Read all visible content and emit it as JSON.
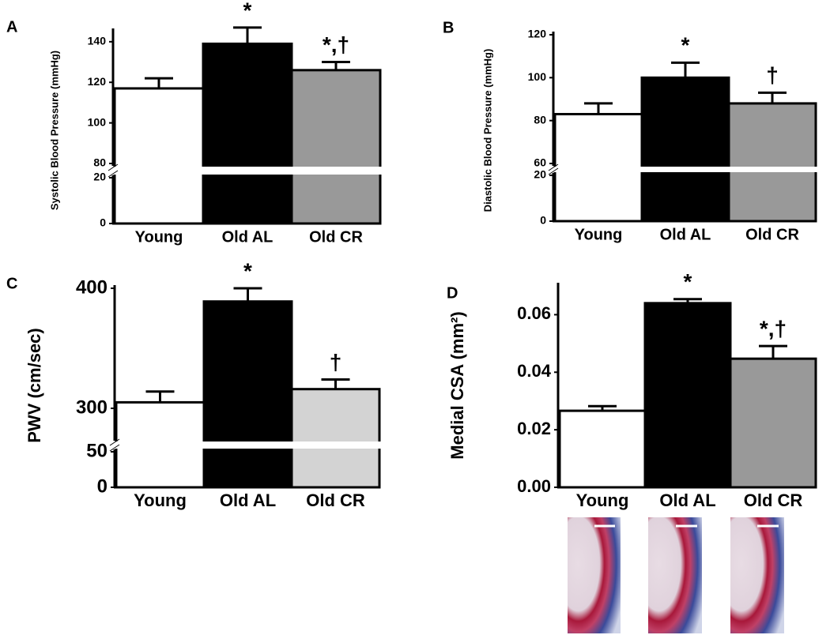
{
  "chart_data": [
    {
      "type": "bar",
      "panel_label": "A",
      "ylabel": "Systolic Blood Pressure (mmHg)",
      "categories": [
        "Young",
        "Old AL",
        "Old CR"
      ],
      "values": [
        117,
        139,
        126
      ],
      "errors": [
        5,
        8,
        4
      ],
      "colors": [
        "#ffffff",
        "#000000",
        "#999999"
      ],
      "annotations": [
        null,
        "*",
        "*,†"
      ],
      "ylim": [
        0,
        145
      ],
      "ybreak": [
        20,
        80
      ],
      "yticks": [
        0,
        20,
        80,
        100,
        120,
        140
      ]
    },
    {
      "type": "bar",
      "panel_label": "B",
      "ylabel": "Diastolic Blood Pressure (mmHg)",
      "categories": [
        "Young",
        "Old AL",
        "Old CR"
      ],
      "values": [
        83,
        100,
        88
      ],
      "errors": [
        5,
        7,
        5
      ],
      "colors": [
        "#ffffff",
        "#000000",
        "#999999"
      ],
      "annotations": [
        null,
        "*",
        "†"
      ],
      "ylim": [
        0,
        120
      ],
      "ybreak": [
        20,
        60
      ],
      "yticks": [
        0,
        20,
        60,
        80,
        100,
        120
      ]
    },
    {
      "type": "bar",
      "panel_label": "C",
      "ylabel": "PWV (cm/sec)",
      "categories": [
        "Young",
        "Old AL",
        "Old CR"
      ],
      "values": [
        305,
        389,
        316
      ],
      "errors": [
        9,
        11,
        8
      ],
      "colors": [
        "#ffffff",
        "#000000",
        "#d3d3d3"
      ],
      "annotations": [
        null,
        "*",
        "†"
      ],
      "ylim": [
        0,
        400
      ],
      "ybreak": [
        50,
        275
      ],
      "yticks": [
        0,
        50,
        300,
        400
      ]
    },
    {
      "type": "bar",
      "panel_label": "D",
      "ylabel": "Medial CSA (mm²)",
      "categories": [
        "Young",
        "Old AL",
        "Old CR"
      ],
      "values": [
        0.0266,
        0.064,
        0.0447
      ],
      "errors": [
        0.0016,
        0.0014,
        0.0044
      ],
      "colors": [
        "#ffffff",
        "#000000",
        "#999999"
      ],
      "annotations": [
        null,
        "*",
        "*,†"
      ],
      "ylim": [
        0,
        0.07
      ],
      "yticks": [
        {
          "value": 0,
          "label": "0.00"
        },
        {
          "value": 0.02,
          "label": "0.02"
        },
        {
          "value": 0.04,
          "label": "0.04"
        },
        {
          "value": 0.06,
          "label": "0.06"
        }
      ]
    }
  ]
}
